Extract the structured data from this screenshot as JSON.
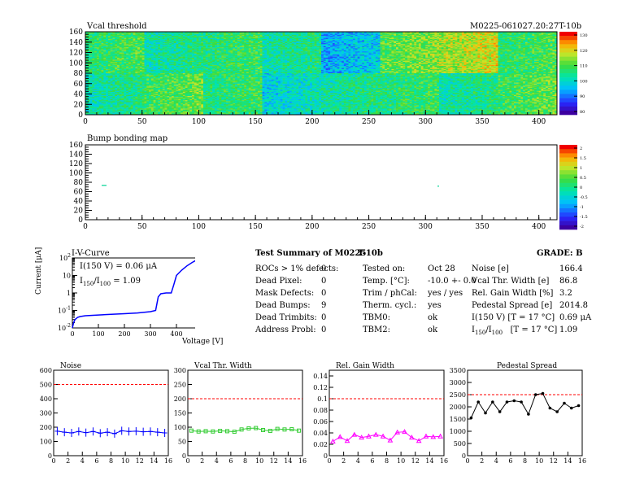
{
  "header": {
    "map_title": "Vcal threshold",
    "module_id": "M0225-061027.20:27T-10b",
    "bump_title": "Bump bonding map"
  },
  "heatmap_axis": {
    "x_ticks": [
      0,
      50,
      100,
      150,
      200,
      250,
      300,
      350,
      400
    ],
    "y_ticks": [
      0,
      20,
      40,
      60,
      80,
      100,
      120,
      140,
      160
    ],
    "x_range": [
      0,
      416
    ],
    "y_range": [
      0,
      160
    ]
  },
  "colorbar_top": {
    "ticks": [
      "130",
      "120",
      "110",
      "100",
      "90",
      "80"
    ]
  },
  "colorbar_bottom": {
    "ticks": [
      "2",
      "1.5",
      "1",
      "0.5",
      "0",
      "-0.5",
      "-1",
      "-1.5",
      "-2"
    ]
  },
  "iv": {
    "title": "I-V-Curve",
    "ann1": "I(150 V) = 0.06 μA",
    "ann2_a": "I",
    "ann2_sub1": "150",
    "ann2_b": "/I",
    "ann2_sub2": "100",
    "ann2_c": " = 1.09",
    "ylabel": "Current [μA]",
    "xlabel": "Voltage [V]",
    "x_ticks": [
      0,
      100,
      200,
      300,
      400,
      500
    ],
    "y_ticks": [
      "10^2",
      "10",
      "1",
      "10^-1",
      "10^-2"
    ]
  },
  "summary": {
    "title": "Test Summary of M0225",
    "title2": "T-10b",
    "grade": "GRADE:  B",
    "defects": [
      {
        "label": "ROCs > 1% defects:",
        "value": "0"
      },
      {
        "label": "Dead Pixel:",
        "value": "0"
      },
      {
        "label": "Mask Defects:",
        "value": "0"
      },
      {
        "label": "Dead Bumps:",
        "value": "9"
      },
      {
        "label": "Dead Trimbits:",
        "value": "0"
      },
      {
        "label": "Address Probl:",
        "value": "0"
      }
    ],
    "conditions": [
      {
        "label": "Tested on:",
        "value": "Oct 28"
      },
      {
        "label": "Temp. [°C]:",
        "value": "-10.0 +- 0.0"
      },
      {
        "label": "Trim / phCal:",
        "value": "yes / yes"
      },
      {
        "label": "Therm. cycl.:",
        "value": "yes"
      },
      {
        "label": "TBM0:",
        "value": "ok"
      },
      {
        "label": "TBM2:",
        "value": "ok"
      }
    ],
    "results": [
      {
        "label": "Noise [e]",
        "value": "166.4"
      },
      {
        "label": "Vcal Thr. Width [e]",
        "value": "86.8"
      },
      {
        "label": "Rel. Gain Width [%]",
        "value": "3.2"
      },
      {
        "label": "Pedestal Spread [e]",
        "value": "2014.8"
      },
      {
        "label": "I(150 V) [T = 17 °C]",
        "value": "0.69 μA"
      },
      {
        "label": "I150/I100  [T = 17 °C]",
        "value": "1.09"
      }
    ]
  },
  "colors": {
    "noise": "#0000ff",
    "vcal": "#33cc33",
    "gain": "#ff00ff",
    "ped": "#000000",
    "limit": "#ff0000"
  },
  "chart_data": [
    {
      "type": "heatmap",
      "title": "Vcal threshold",
      "xlim": [
        0,
        416
      ],
      "ylim": [
        0,
        160
      ],
      "color_range": [
        80,
        130
      ],
      "roc_means_top": [
        108,
        104,
        107,
        104,
        96,
        112,
        117,
        108
      ],
      "roc_means_bottom": [
        104,
        110,
        107,
        100,
        104,
        107,
        104,
        110
      ]
    },
    {
      "type": "heatmap",
      "title": "Bump bonding map",
      "xlim": [
        0,
        416
      ],
      "ylim": [
        0,
        160
      ],
      "color_range": [
        -2,
        2
      ]
    },
    {
      "type": "line",
      "title": "I-V-Curve",
      "xlabel": "Voltage [V]",
      "ylabel": "Current [μA]",
      "yscale": "log",
      "xlim": [
        0,
        550
      ],
      "ylim": [
        0.01,
        100
      ],
      "x": [
        0,
        5,
        10,
        20,
        30,
        50,
        100,
        150,
        200,
        250,
        300,
        320,
        330,
        340,
        360,
        380,
        390,
        400,
        420,
        440,
        460,
        480,
        500
      ],
      "y": [
        0.01,
        0.02,
        0.03,
        0.04,
        0.045,
        0.05,
        0.055,
        0.06,
        0.065,
        0.072,
        0.085,
        0.1,
        0.6,
        0.9,
        1.0,
        1.0,
        3,
        10,
        20,
        35,
        55,
        80,
        100
      ]
    },
    {
      "type": "line",
      "title": "Noise",
      "x": [
        0,
        1,
        2,
        3,
        4,
        5,
        6,
        7,
        8,
        9,
        10,
        11,
        12,
        13,
        14,
        15
      ],
      "y": [
        172,
        165,
        160,
        170,
        162,
        170,
        158,
        165,
        155,
        175,
        170,
        172,
        168,
        170,
        165,
        160
      ],
      "xlim": [
        0,
        16
      ],
      "ylim": [
        0,
        600
      ],
      "limit": 500,
      "x_ticks": [
        0,
        2,
        4,
        6,
        8,
        10,
        12,
        14,
        16
      ],
      "y_ticks": [
        0,
        100,
        200,
        300,
        400,
        500,
        600
      ]
    },
    {
      "type": "line",
      "title": "Vcal Thr. Width",
      "x": [
        0,
        1,
        2,
        3,
        4,
        5,
        6,
        7,
        8,
        9,
        10,
        11,
        12,
        13,
        14,
        15
      ],
      "y": [
        88,
        85,
        86,
        85,
        87,
        86,
        84,
        92,
        96,
        97,
        90,
        87,
        94,
        92,
        93,
        88
      ],
      "xlim": [
        0,
        16
      ],
      "ylim": [
        0,
        300
      ],
      "limit": 200,
      "x_ticks": [
        0,
        2,
        4,
        6,
        8,
        10,
        12,
        14,
        16
      ],
      "y_ticks": [
        0,
        50,
        100,
        150,
        200,
        250,
        300
      ]
    },
    {
      "type": "line",
      "title": "Rel. Gain Width",
      "x": [
        0,
        1,
        2,
        3,
        4,
        5,
        6,
        7,
        8,
        9,
        10,
        11,
        12,
        13,
        14,
        15
      ],
      "y": [
        0.025,
        0.033,
        0.026,
        0.037,
        0.032,
        0.034,
        0.037,
        0.034,
        0.027,
        0.041,
        0.042,
        0.032,
        0.026,
        0.034,
        0.033,
        0.034
      ],
      "xlim": [
        0,
        16
      ],
      "ylim": [
        0,
        0.15
      ],
      "limit": 0.1,
      "x_ticks": [
        0,
        2,
        4,
        6,
        8,
        10,
        12,
        14,
        16
      ],
      "y_ticks": [
        0,
        0.02,
        0.04,
        0.06,
        0.08,
        0.1,
        0.12,
        0.14
      ]
    },
    {
      "type": "line",
      "title": "Pedestal Spread",
      "x": [
        0,
        1,
        2,
        3,
        4,
        5,
        6,
        7,
        8,
        9,
        10,
        11,
        12,
        13,
        14,
        15
      ],
      "y": [
        1550,
        2200,
        1750,
        2200,
        1800,
        2200,
        2250,
        2200,
        1700,
        2500,
        2550,
        1950,
        1800,
        2150,
        1950,
        2050
      ],
      "xlim": [
        0,
        16
      ],
      "ylim": [
        0,
        3500
      ],
      "limit": 2500,
      "x_ticks": [
        0,
        2,
        4,
        6,
        8,
        10,
        12,
        14,
        16
      ],
      "y_ticks": [
        0,
        500,
        1000,
        1500,
        2000,
        2500,
        3000,
        3500
      ]
    }
  ]
}
